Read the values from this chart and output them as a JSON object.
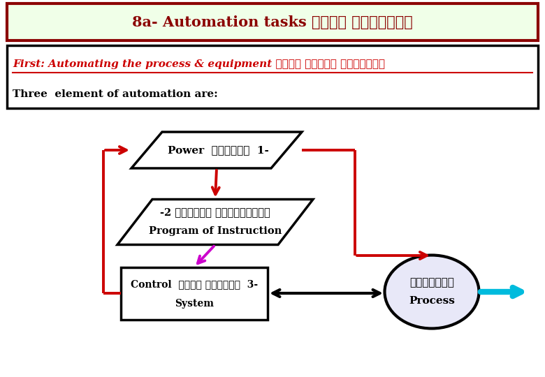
{
  "title": "8a- Automation tasks مهام الأتمتة",
  "title_bg": "#f0ffe8",
  "title_border": "#8b0000",
  "first_line": "First: Automating the process & equipment مهمة أتمنة المعدات",
  "second_line": "Three  element of automation are:",
  "box1_line1": "Power  القدرة  1-",
  "box2_line1": "-2 برنامج التعليمات",
  "box2_line2": "Program of Instruction",
  "box3_line1": "Control  نظام التحكم  3-",
  "box3_line2": "System",
  "ellipse_line1": "الأسلوب",
  "ellipse_line2": "Process",
  "bg_color": "#ffffff",
  "red_color": "#cc0000",
  "dark_red": "#8b0000",
  "magenta_color": "#cc00cc",
  "cyan_color": "#00bbdd"
}
